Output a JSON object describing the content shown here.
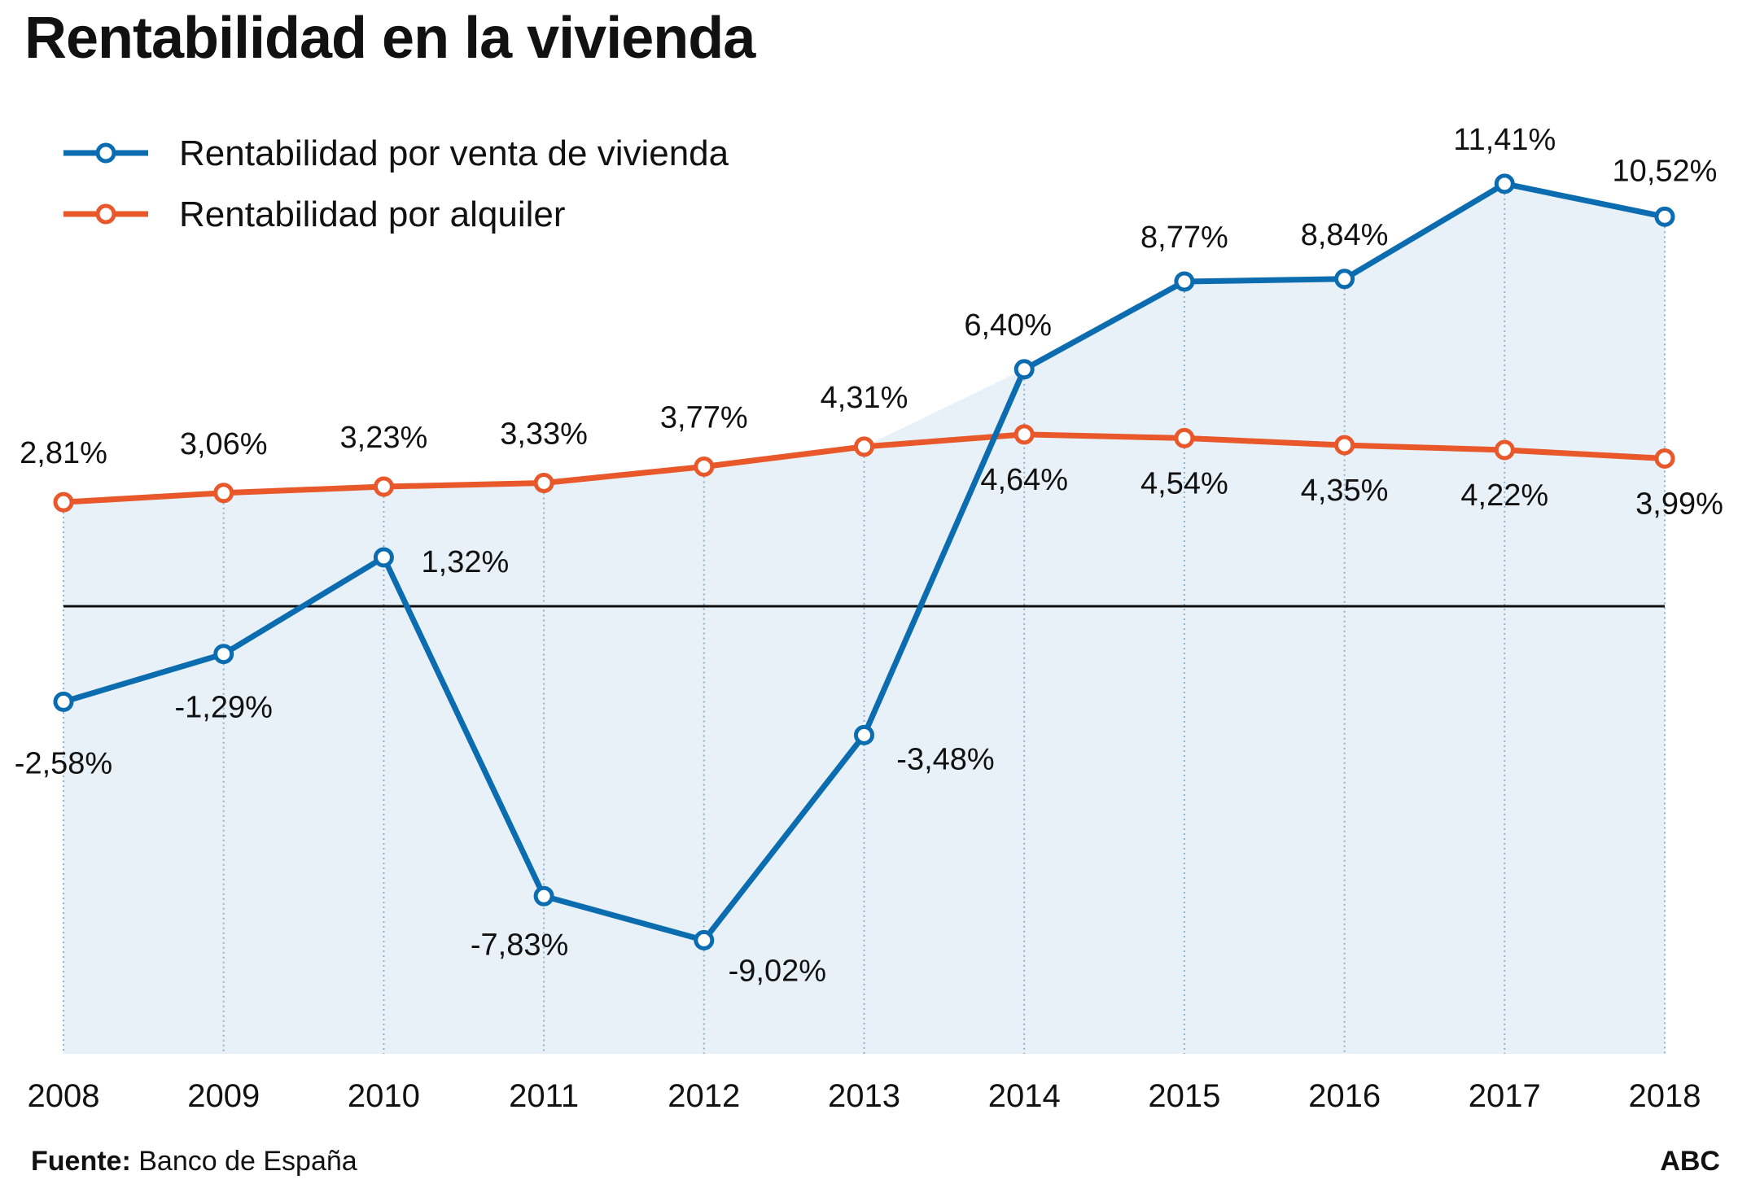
{
  "title": "Rentabilidad en la vivienda",
  "source_label": "Fuente:",
  "source_text": "Banco de España",
  "brand": "ABC",
  "colors": {
    "sale": "#0b6cb0",
    "rent": "#e8582a",
    "fill": "#e8f1f8",
    "baseline": "#111111"
  },
  "chart_data": {
    "type": "line",
    "title": "Rentabilidad en la vivienda",
    "x": [
      "2008",
      "2009",
      "2010",
      "2011",
      "2012",
      "2013",
      "2014",
      "2015",
      "2016",
      "2017",
      "2018"
    ],
    "series": [
      {
        "name": "Rentabilidad por venta de vivienda",
        "values": [
          -2.58,
          -1.29,
          1.32,
          -7.83,
          -9.02,
          -3.48,
          6.4,
          8.77,
          8.84,
          11.41,
          10.52
        ],
        "labels": [
          "-2,58%",
          "-1,29%",
          "1,32%",
          "-7,83%",
          "-9,02%",
          "-3,48%",
          "6,40%",
          "8,77%",
          "8,84%",
          "11,41%",
          "10,52%"
        ]
      },
      {
        "name": "Rentabilidad por alquiler",
        "values": [
          2.81,
          3.06,
          3.23,
          3.33,
          3.77,
          4.31,
          4.64,
          4.54,
          4.35,
          4.22,
          3.99
        ],
        "labels": [
          "2,81%",
          "3,06%",
          "3,23%",
          "3,33%",
          "3,77%",
          "4,31%",
          "4,64%",
          "4,54%",
          "4,35%",
          "4,22%",
          "3,99%"
        ]
      }
    ],
    "ylim": [
      -11,
      12
    ],
    "grid": "vertical dotted lines at each year",
    "legend": "top-left",
    "zero_line": true
  }
}
